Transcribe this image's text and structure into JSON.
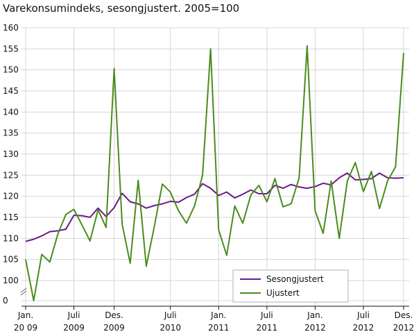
{
  "chart_data": {
    "type": "line",
    "title": "Varekonsumindeks, sesongjustert. 2005=100",
    "xlabel": "",
    "ylabel": "",
    "ylim": [
      100,
      160
    ],
    "yticks": [
      "160",
      "155",
      "150",
      "145",
      "140",
      "135",
      "130",
      "125",
      "120",
      "115",
      "110",
      "105",
      "100",
      "0"
    ],
    "yaxis_break": true,
    "grid": true,
    "legend_position": "bottom-right",
    "x_tick_labels": [
      {
        "line1": "Jan.",
        "line2": "20 09"
      },
      {
        "line1": "Juli",
        "line2": "2009"
      },
      {
        "line1": "Des.",
        "line2": "2009"
      },
      {
        "line1": "Juli",
        "line2": "2010"
      },
      {
        "line1": "Jan.",
        "line2": "2011"
      },
      {
        "line1": "Juli",
        "line2": "2011"
      },
      {
        "line1": "Jan.",
        "line2": "2012"
      },
      {
        "line1": "Juli",
        "line2": "2012"
      },
      {
        "line1": "Des.",
        "line2": "2012"
      }
    ],
    "x_tick_month_index": [
      0,
      6,
      11,
      18,
      24,
      30,
      36,
      42,
      47
    ],
    "series": [
      {
        "name": "Sesongjustert",
        "color": "#6a1a8a",
        "values": [
          109.3,
          109.8,
          110.6,
          111.6,
          111.8,
          112.2,
          115.5,
          115.4,
          115.0,
          117.2,
          115.2,
          117.3,
          120.7,
          118.7,
          118.2,
          117.2,
          117.8,
          118.2,
          118.8,
          118.6,
          119.7,
          120.5,
          123.0,
          121.9,
          120.2,
          121.0,
          119.6,
          120.5,
          121.5,
          120.6,
          120.6,
          122.6,
          121.9,
          122.8,
          122.2,
          121.9,
          122.3,
          123.1,
          122.7,
          124.4,
          125.5,
          123.9,
          124.0,
          124.2,
          125.5,
          124.4,
          124.3,
          124.4
        ]
      },
      {
        "name": "Ujustert",
        "color": "#4a8c1c",
        "values": [
          105.0,
          96.0,
          106.2,
          104.4,
          111.0,
          115.7,
          116.9,
          113.2,
          109.4,
          116.8,
          112.6,
          150.3,
          113.4,
          104.1,
          123.8,
          103.4,
          112.8,
          122.9,
          121.0,
          116.6,
          113.6,
          117.7,
          125.0,
          155.0,
          112.0,
          106.0,
          117.7,
          113.6,
          120.3,
          122.6,
          118.7,
          124.2,
          117.5,
          118.2,
          124.3,
          155.7,
          116.6,
          111.2,
          123.6,
          110.0,
          123.6,
          128.0,
          121.1,
          125.9,
          117.1,
          123.6,
          127.0,
          154.0
        ]
      }
    ]
  }
}
